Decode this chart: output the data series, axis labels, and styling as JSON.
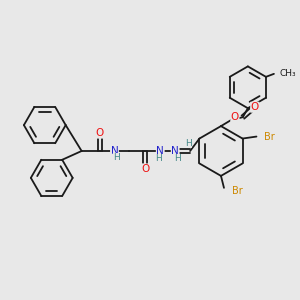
{
  "background_color": "#e8e8e8",
  "bond_color": "#1a1a1a",
  "atom_colors": {
    "O": "#ee1111",
    "N": "#2222cc",
    "H": "#448888",
    "Br": "#cc8800",
    "C": "#1a1a1a"
  },
  "figsize": [
    3.0,
    3.0
  ],
  "dpi": 100
}
